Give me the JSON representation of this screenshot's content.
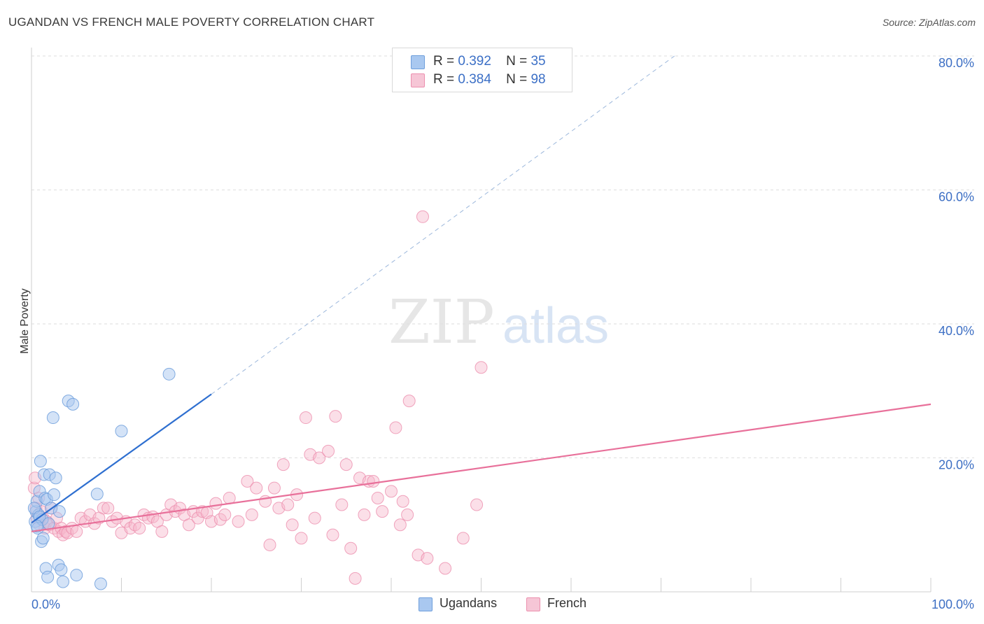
{
  "title": "UGANDAN VS FRENCH MALE POVERTY CORRELATION CHART",
  "source": "Source: ZipAtlas.com",
  "colors": {
    "ugandans_fill": "#a9c8f0",
    "ugandans_stroke": "#6f9fdc",
    "ugandans_line": "#2e6fd0",
    "french_fill": "#f6b9cc",
    "french_stroke": "#ec8fae",
    "french_line": "#e8709a",
    "axis_text": "#3d6fc4",
    "grid": "#dedede"
  },
  "legend": {
    "r_label": "R =",
    "n_label": "N =",
    "ugandans": {
      "r": "0.392",
      "n": "35"
    },
    "french": {
      "r": "0.384",
      "n": "98"
    }
  },
  "bottom_legend": {
    "ugandans": "Ugandans",
    "french": "French"
  },
  "watermark": {
    "zip": "ZIP",
    "atlas": "atlas"
  },
  "chart_data": {
    "type": "scatter",
    "xlabel": "",
    "ylabel": "Male Poverty",
    "xlim": [
      0,
      100
    ],
    "ylim": [
      0,
      80
    ],
    "x_tick_labels": [
      "0.0%",
      "100.0%"
    ],
    "y_ticks": [
      20,
      40,
      60,
      80
    ],
    "y_tick_labels": [
      "20.0%",
      "40.0%",
      "60.0%",
      "80.0%"
    ],
    "grid": "horizontal dashed",
    "legend_position": "top-center",
    "series": [
      {
        "name": "Ugandans",
        "points": [
          [
            0.4,
            10.5
          ],
          [
            0.5,
            12.0
          ],
          [
            0.6,
            13.5
          ],
          [
            0.7,
            9.5
          ],
          [
            0.8,
            11.5
          ],
          [
            0.9,
            15.0
          ],
          [
            1.0,
            19.5
          ],
          [
            1.1,
            7.5
          ],
          [
            1.2,
            10.8
          ],
          [
            1.3,
            8.0
          ],
          [
            1.4,
            17.5
          ],
          [
            1.5,
            14.0
          ],
          [
            1.6,
            3.5
          ],
          [
            1.7,
            13.8
          ],
          [
            1.8,
            2.2
          ],
          [
            2.0,
            17.5
          ],
          [
            2.2,
            12.5
          ],
          [
            2.4,
            26.0
          ],
          [
            2.5,
            14.5
          ],
          [
            2.7,
            17.0
          ],
          [
            3.0,
            4.0
          ],
          [
            3.1,
            12.0
          ],
          [
            3.3,
            3.3
          ],
          [
            3.5,
            1.5
          ],
          [
            4.1,
            28.5
          ],
          [
            4.6,
            28.0
          ],
          [
            5.0,
            2.5
          ],
          [
            7.3,
            14.6
          ],
          [
            7.7,
            1.2
          ],
          [
            10.0,
            24.0
          ],
          [
            15.3,
            32.5
          ],
          [
            0.3,
            12.5
          ],
          [
            0.9,
            11.2
          ],
          [
            1.9,
            10.2
          ],
          [
            0.6,
            9.8
          ]
        ],
        "trend": {
          "x": [
            0,
            20
          ],
          "y": [
            10.3,
            29.5
          ],
          "extended_to": [
            71.5,
            80
          ]
        }
      },
      {
        "name": "French",
        "points": [
          [
            0.3,
            15.5
          ],
          [
            0.4,
            17.0
          ],
          [
            0.5,
            12.5
          ],
          [
            0.6,
            11.0
          ],
          [
            0.8,
            14.0
          ],
          [
            0.9,
            10.0
          ],
          [
            1.1,
            12.0
          ],
          [
            1.3,
            11.0
          ],
          [
            1.5,
            9.5
          ],
          [
            1.7,
            10.5
          ],
          [
            2.0,
            10.0
          ],
          [
            2.2,
            12.5
          ],
          [
            2.5,
            9.5
          ],
          [
            2.8,
            11.0
          ],
          [
            3.0,
            9.0
          ],
          [
            3.3,
            9.5
          ],
          [
            3.5,
            8.5
          ],
          [
            3.8,
            9.0
          ],
          [
            4.0,
            8.8
          ],
          [
            4.5,
            9.5
          ],
          [
            5.0,
            9.0
          ],
          [
            5.5,
            11.0
          ],
          [
            6.0,
            10.5
          ],
          [
            6.5,
            11.5
          ],
          [
            7.0,
            10.2
          ],
          [
            7.5,
            11.0
          ],
          [
            8.0,
            12.5
          ],
          [
            8.5,
            12.5
          ],
          [
            9.0,
            10.5
          ],
          [
            9.5,
            11.0
          ],
          [
            10.0,
            8.8
          ],
          [
            10.5,
            10.5
          ],
          [
            11.0,
            9.5
          ],
          [
            11.5,
            10.0
          ],
          [
            12.0,
            9.5
          ],
          [
            12.5,
            11.5
          ],
          [
            13.0,
            11.0
          ],
          [
            13.5,
            11.2
          ],
          [
            14.0,
            10.5
          ],
          [
            14.5,
            9.0
          ],
          [
            15.0,
            11.5
          ],
          [
            15.5,
            13.0
          ],
          [
            16.0,
            12.0
          ],
          [
            16.5,
            12.5
          ],
          [
            17.0,
            11.5
          ],
          [
            17.5,
            10.0
          ],
          [
            18.0,
            12.0
          ],
          [
            18.5,
            11.0
          ],
          [
            19.0,
            12.0
          ],
          [
            19.5,
            11.8
          ],
          [
            20.0,
            10.5
          ],
          [
            20.5,
            13.2
          ],
          [
            21.0,
            10.8
          ],
          [
            21.5,
            11.5
          ],
          [
            22.0,
            14.0
          ],
          [
            23.0,
            10.5
          ],
          [
            24.0,
            16.5
          ],
          [
            24.5,
            11.5
          ],
          [
            25.0,
            15.5
          ],
          [
            26.0,
            13.5
          ],
          [
            26.5,
            7.0
          ],
          [
            27.0,
            15.5
          ],
          [
            27.5,
            12.5
          ],
          [
            28.0,
            19.0
          ],
          [
            28.5,
            13.0
          ],
          [
            29.0,
            10.0
          ],
          [
            29.5,
            14.5
          ],
          [
            30.0,
            8.0
          ],
          [
            30.5,
            26.0
          ],
          [
            31.0,
            20.5
          ],
          [
            31.5,
            11.0
          ],
          [
            32.0,
            20.0
          ],
          [
            33.0,
            21.0
          ],
          [
            33.5,
            8.5
          ],
          [
            33.8,
            26.2
          ],
          [
            34.5,
            13.0
          ],
          [
            35.0,
            19.0
          ],
          [
            35.5,
            6.5
          ],
          [
            36.0,
            2.0
          ],
          [
            36.5,
            17.0
          ],
          [
            37.0,
            11.5
          ],
          [
            37.5,
            16.5
          ],
          [
            38.0,
            16.5
          ],
          [
            38.5,
            14.0
          ],
          [
            39.0,
            12.0
          ],
          [
            40.0,
            15.0
          ],
          [
            40.5,
            24.5
          ],
          [
            41.0,
            10.0
          ],
          [
            41.3,
            13.5
          ],
          [
            41.8,
            11.5
          ],
          [
            42.0,
            28.5
          ],
          [
            43.0,
            5.5
          ],
          [
            43.5,
            56.0
          ],
          [
            44.0,
            5.0
          ],
          [
            46.0,
            3.5
          ],
          [
            48.0,
            8.0
          ],
          [
            49.5,
            13.0
          ],
          [
            50.0,
            33.5
          ]
        ],
        "trend": {
          "x": [
            0,
            100
          ],
          "y": [
            9.0,
            28.0
          ]
        }
      }
    ]
  }
}
